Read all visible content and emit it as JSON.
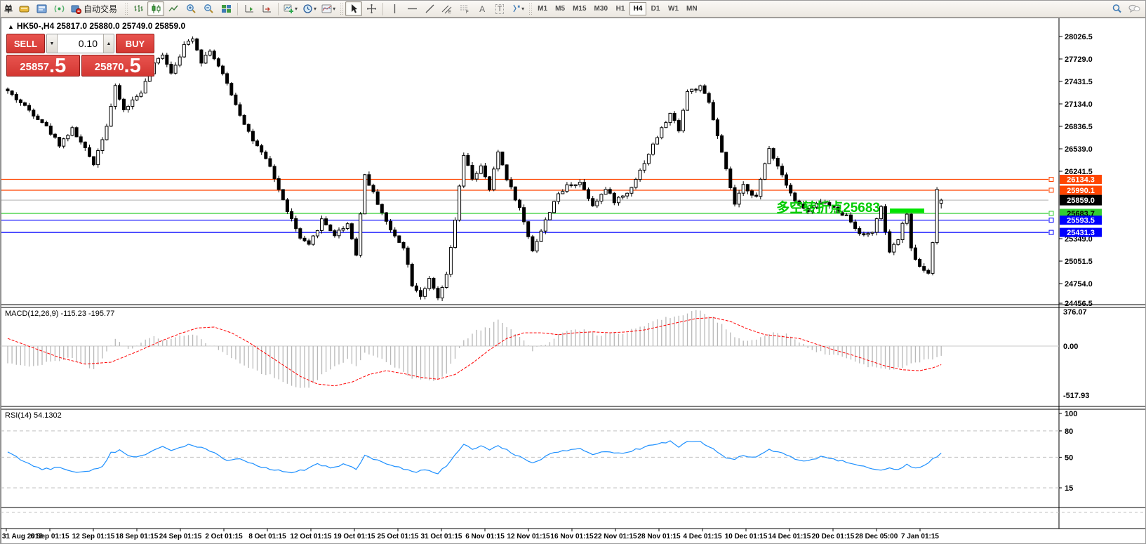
{
  "toolbar": {
    "order_label": "单",
    "autotrading_label": "自动交易",
    "letters": {
      "text_tool": "A",
      "label_tool": "T"
    },
    "timeframes": [
      "M1",
      "M5",
      "M15",
      "M30",
      "H1",
      "H4",
      "D1",
      "W1",
      "MN"
    ],
    "active_timeframe": "H4"
  },
  "chart_header": {
    "marker": "▲",
    "symbol": "HK50-,H4",
    "ohlc_text": "25817.0 25880.0 25749.0 25859.0"
  },
  "trade_panel": {
    "sell_label": "SELL",
    "buy_label": "BUY",
    "volume": "0.10",
    "step_down": "▼",
    "step_up": "▲",
    "sell_price_int": "25857",
    "sell_price_dec": ".5",
    "buy_price_int": "25870",
    "buy_price_dec": ".5",
    "panel_color": "#d9403a"
  },
  "macd": {
    "label": "MACD(12,26,9) -115.23 -195.77"
  },
  "rsi": {
    "label": "RSI(14) 54.1302"
  },
  "chart_data": [
    {
      "type": "candlestick",
      "symbol": "HK50-",
      "period": "H4",
      "last_bar_ohlc": [
        25817.0,
        25880.0,
        25749.0,
        25859.0
      ],
      "n_bars": 218,
      "bars_estimated": true,
      "price_waypoints": [
        [
          0,
          27300
        ],
        [
          4,
          27100
        ],
        [
          8,
          26900
        ],
        [
          12,
          26600
        ],
        [
          15,
          26800
        ],
        [
          20,
          26350
        ],
        [
          23,
          26850
        ],
        [
          25,
          27350
        ],
        [
          27,
          27050
        ],
        [
          31,
          27300
        ],
        [
          34,
          27650
        ],
        [
          36,
          27800
        ],
        [
          38,
          27550
        ],
        [
          41,
          27900
        ],
        [
          43,
          28020
        ],
        [
          45,
          27700
        ],
        [
          47,
          27850
        ],
        [
          51,
          27400
        ],
        [
          54,
          27000
        ],
        [
          57,
          26650
        ],
        [
          61,
          26300
        ],
        [
          64,
          25850
        ],
        [
          68,
          25350
        ],
        [
          70,
          25250
        ],
        [
          73,
          25600
        ],
        [
          76,
          25400
        ],
        [
          79,
          25550
        ],
        [
          81,
          25150
        ],
        [
          83,
          26200
        ],
        [
          85,
          25950
        ],
        [
          89,
          25450
        ],
        [
          92,
          25250
        ],
        [
          94,
          24750
        ],
        [
          96,
          24600
        ],
        [
          98,
          24800
        ],
        [
          100,
          24550
        ],
        [
          102,
          24850
        ],
        [
          104,
          25600
        ],
        [
          106,
          26450
        ],
        [
          108,
          26150
        ],
        [
          110,
          26300
        ],
        [
          112,
          26000
        ],
        [
          114,
          26500
        ],
        [
          116,
          26150
        ],
        [
          119,
          25750
        ],
        [
          122,
          25200
        ],
        [
          124,
          25450
        ],
        [
          127,
          25850
        ],
        [
          130,
          26050
        ],
        [
          133,
          26100
        ],
        [
          136,
          25800
        ],
        [
          139,
          26000
        ],
        [
          141,
          25850
        ],
        [
          144,
          25950
        ],
        [
          147,
          26250
        ],
        [
          151,
          26700
        ],
        [
          154,
          27000
        ],
        [
          156,
          26800
        ],
        [
          158,
          27300
        ],
        [
          161,
          27350
        ],
        [
          163,
          27150
        ],
        [
          165,
          26700
        ],
        [
          167,
          26250
        ],
        [
          169,
          25800
        ],
        [
          171,
          26050
        ],
        [
          174,
          25900
        ],
        [
          177,
          26550
        ],
        [
          180,
          26200
        ],
        [
          183,
          25850
        ],
        [
          186,
          25700
        ],
        [
          189,
          25850
        ],
        [
          192,
          25750
        ],
        [
          195,
          25650
        ],
        [
          197,
          25500
        ],
        [
          199,
          25380
        ],
        [
          201,
          25450
        ],
        [
          203,
          25750
        ],
        [
          205,
          25150
        ],
        [
          207,
          25350
        ],
        [
          209,
          25700
        ],
        [
          210,
          25200
        ],
        [
          212,
          24980
        ],
        [
          214,
          24900
        ],
        [
          215,
          25300
        ],
        [
          216,
          25980
        ],
        [
          217,
          25859
        ]
      ],
      "y_axis_ticks": [
        "28026.5",
        "27729.0",
        "27431.5",
        "27134.0",
        "26836.5",
        "26539.0",
        "26241.5",
        "25349.0",
        "25051.5",
        "24754.0",
        "24456.5"
      ],
      "x_axis_labels": [
        "31 Aug 2018",
        "6 Sep 01:15",
        "12 Sep 01:15",
        "18 Sep 01:15",
        "24 Sep 01:15",
        "2 Oct 01:15",
        "8 Oct 01:15",
        "12 Oct 01:15",
        "19 Oct 01:15",
        "25 Oct 01:15",
        "31 Oct 01:15",
        "6 Nov 01:15",
        "12 Nov 01:15",
        "16 Nov 01:15",
        "22 Nov 01:15",
        "28 Nov 01:15",
        "4 Dec 01:15",
        "10 Dec 01:15",
        "14 Dec 01:15",
        "20 Dec 01:15",
        "28 Dec 05:00",
        "7 Jan 01:15"
      ],
      "levels": [
        {
          "price": 26134.3,
          "label": "26134.3",
          "color": "#ff4500",
          "label_bg": "#ff4500",
          "label_fg": "#ffffff"
        },
        {
          "price": 25990.1,
          "label": "25990.1",
          "color": "#ff4500",
          "label_bg": "#ff4500",
          "label_fg": "#ffffff"
        },
        {
          "price": 25859.0,
          "label": "25859.0",
          "color": "#c0c0c0",
          "label_bg": "#000000",
          "label_fg": "#ffffff",
          "is_current": true
        },
        {
          "price": 25683.7,
          "label": "25683.7",
          "color": "#32cd32",
          "label_bg": "#32cd32",
          "label_fg": "#000000"
        },
        {
          "price": 25593.5,
          "label": "25593.5",
          "color": "#0000ff",
          "label_bg": "#0000ff",
          "label_fg": "#ffffff"
        },
        {
          "price": 25431.3,
          "label": "25431.3",
          "color": "#0000ff",
          "label_bg": "#0000ff",
          "label_fg": "#ffffff"
        }
      ],
      "annotation": {
        "text": "多空转折点25683",
        "color": "#00cc00",
        "value": 25683
      },
      "highlight_segment": {
        "price": 25720,
        "from_bar": 205,
        "to_bar": 213,
        "color": "#00e400"
      }
    },
    {
      "type": "macd-histogram",
      "name": "MACD(12,26,9)",
      "current_values": [
        -115.23,
        -195.77
      ],
      "y_ticks": [
        "376.07",
        "0.00",
        "-517.93"
      ],
      "y_range": [
        -517.93,
        376.07
      ],
      "histogram_color": "#b8b8b8",
      "signal_color": "#ff0000",
      "histogram_waypoints": [
        [
          0,
          -180
        ],
        [
          5,
          -220
        ],
        [
          10,
          -160
        ],
        [
          15,
          -120
        ],
        [
          20,
          -250
        ],
        [
          23,
          -60
        ],
        [
          25,
          80
        ],
        [
          28,
          -40
        ],
        [
          31,
          40
        ],
        [
          34,
          90
        ],
        [
          37,
          60
        ],
        [
          41,
          110
        ],
        [
          43,
          130
        ],
        [
          46,
          40
        ],
        [
          49,
          -30
        ],
        [
          52,
          -130
        ],
        [
          55,
          -210
        ],
        [
          58,
          -270
        ],
        [
          61,
          -310
        ],
        [
          64,
          -380
        ],
        [
          67,
          -430
        ],
        [
          70,
          -450
        ],
        [
          73,
          -300
        ],
        [
          76,
          -220
        ],
        [
          79,
          -150
        ],
        [
          81,
          -210
        ],
        [
          83,
          -60
        ],
        [
          85,
          -90
        ],
        [
          88,
          -170
        ],
        [
          91,
          -250
        ],
        [
          94,
          -340
        ],
        [
          97,
          -350
        ],
        [
          100,
          -360
        ],
        [
          102,
          -280
        ],
        [
          104,
          -120
        ],
        [
          106,
          60
        ],
        [
          109,
          160
        ],
        [
          112,
          200
        ],
        [
          114,
          280
        ],
        [
          117,
          180
        ],
        [
          120,
          60
        ],
        [
          122,
          -40
        ],
        [
          125,
          20
        ],
        [
          128,
          120
        ],
        [
          131,
          160
        ],
        [
          134,
          170
        ],
        [
          137,
          120
        ],
        [
          140,
          130
        ],
        [
          143,
          140
        ],
        [
          146,
          180
        ],
        [
          149,
          240
        ],
        [
          152,
          290
        ],
        [
          155,
          310
        ],
        [
          158,
          350
        ],
        [
          161,
          372
        ],
        [
          164,
          300
        ],
        [
          167,
          180
        ],
        [
          169,
          80
        ],
        [
          172,
          60
        ],
        [
          175,
          90
        ],
        [
          178,
          140
        ],
        [
          181,
          120
        ],
        [
          184,
          40
        ],
        [
          187,
          -40
        ],
        [
          190,
          -80
        ],
        [
          193,
          -100
        ],
        [
          196,
          -140
        ],
        [
          199,
          -200
        ],
        [
          202,
          -230
        ],
        [
          205,
          -260
        ],
        [
          208,
          -220
        ],
        [
          211,
          -170
        ],
        [
          214,
          -150
        ],
        [
          216,
          -130
        ],
        [
          217,
          -115.23
        ]
      ],
      "signal_waypoints": [
        [
          0,
          80
        ],
        [
          6,
          -20
        ],
        [
          12,
          -120
        ],
        [
          18,
          -190
        ],
        [
          24,
          -170
        ],
        [
          30,
          -60
        ],
        [
          36,
          60
        ],
        [
          40,
          130
        ],
        [
          44,
          190
        ],
        [
          48,
          200
        ],
        [
          52,
          140
        ],
        [
          56,
          40
        ],
        [
          60,
          -80
        ],
        [
          64,
          -200
        ],
        [
          68,
          -320
        ],
        [
          72,
          -400
        ],
        [
          76,
          -420
        ],
        [
          80,
          -380
        ],
        [
          84,
          -300
        ],
        [
          88,
          -260
        ],
        [
          92,
          -290
        ],
        [
          96,
          -330
        ],
        [
          100,
          -350
        ],
        [
          104,
          -300
        ],
        [
          108,
          -180
        ],
        [
          112,
          -40
        ],
        [
          116,
          80
        ],
        [
          120,
          140
        ],
        [
          124,
          140
        ],
        [
          128,
          120
        ],
        [
          132,
          140
        ],
        [
          136,
          150
        ],
        [
          140,
          140
        ],
        [
          144,
          150
        ],
        [
          148,
          170
        ],
        [
          152,
          210
        ],
        [
          156,
          250
        ],
        [
          160,
          290
        ],
        [
          164,
          300
        ],
        [
          168,
          260
        ],
        [
          172,
          180
        ],
        [
          176,
          120
        ],
        [
          180,
          100
        ],
        [
          184,
          80
        ],
        [
          188,
          20
        ],
        [
          192,
          -40
        ],
        [
          196,
          -90
        ],
        [
          200,
          -150
        ],
        [
          204,
          -210
        ],
        [
          208,
          -250
        ],
        [
          212,
          -260
        ],
        [
          215,
          -230
        ],
        [
          217,
          -195.77
        ]
      ]
    },
    {
      "type": "line",
      "name": "RSI(14)",
      "current_value": 54.1302,
      "y_ticks": [
        "100",
        "80",
        "50",
        "15"
      ],
      "y_range": [
        0,
        100
      ],
      "level_lines": [
        80,
        50,
        15
      ],
      "line_color": "#1e90ff",
      "waypoints": [
        [
          0,
          57
        ],
        [
          2,
          50
        ],
        [
          5,
          42
        ],
        [
          8,
          36
        ],
        [
          12,
          38
        ],
        [
          16,
          33
        ],
        [
          20,
          36
        ],
        [
          22,
          40
        ],
        [
          24,
          55
        ],
        [
          26,
          58
        ],
        [
          28,
          52
        ],
        [
          30,
          50
        ],
        [
          33,
          55
        ],
        [
          36,
          62
        ],
        [
          38,
          58
        ],
        [
          40,
          60
        ],
        [
          42,
          65
        ],
        [
          44,
          62
        ],
        [
          46,
          60
        ],
        [
          48,
          55
        ],
        [
          51,
          45
        ],
        [
          54,
          48
        ],
        [
          57,
          42
        ],
        [
          60,
          38
        ],
        [
          63,
          35
        ],
        [
          66,
          33
        ],
        [
          69,
          35
        ],
        [
          72,
          42
        ],
        [
          75,
          38
        ],
        [
          78,
          42
        ],
        [
          81,
          36
        ],
        [
          83,
          52
        ],
        [
          85,
          48
        ],
        [
          88,
          42
        ],
        [
          91,
          38
        ],
        [
          94,
          33
        ],
        [
          97,
          35
        ],
        [
          100,
          32
        ],
        [
          102,
          40
        ],
        [
          104,
          52
        ],
        [
          106,
          65
        ],
        [
          108,
          60
        ],
        [
          110,
          62
        ],
        [
          112,
          58
        ],
        [
          114,
          64
        ],
        [
          116,
          58
        ],
        [
          119,
          50
        ],
        [
          122,
          44
        ],
        [
          124,
          48
        ],
        [
          127,
          55
        ],
        [
          130,
          58
        ],
        [
          133,
          60
        ],
        [
          136,
          53
        ],
        [
          139,
          57
        ],
        [
          141,
          54
        ],
        [
          144,
          56
        ],
        [
          147,
          60
        ],
        [
          151,
          66
        ],
        [
          154,
          68
        ],
        [
          156,
          62
        ],
        [
          158,
          68
        ],
        [
          161,
          67
        ],
        [
          163,
          63
        ],
        [
          165,
          55
        ],
        [
          167,
          50
        ],
        [
          169,
          48
        ],
        [
          171,
          52
        ],
        [
          174,
          50
        ],
        [
          177,
          58
        ],
        [
          180,
          54
        ],
        [
          183,
          48
        ],
        [
          186,
          46
        ],
        [
          189,
          50
        ],
        [
          192,
          47
        ],
        [
          195,
          45
        ],
        [
          198,
          40
        ],
        [
          201,
          36
        ],
        [
          203,
          34
        ],
        [
          205,
          37
        ],
        [
          207,
          35
        ],
        [
          209,
          42
        ],
        [
          211,
          38
        ],
        [
          213,
          40
        ],
        [
          215,
          48
        ],
        [
          217,
          54.13
        ]
      ]
    }
  ]
}
